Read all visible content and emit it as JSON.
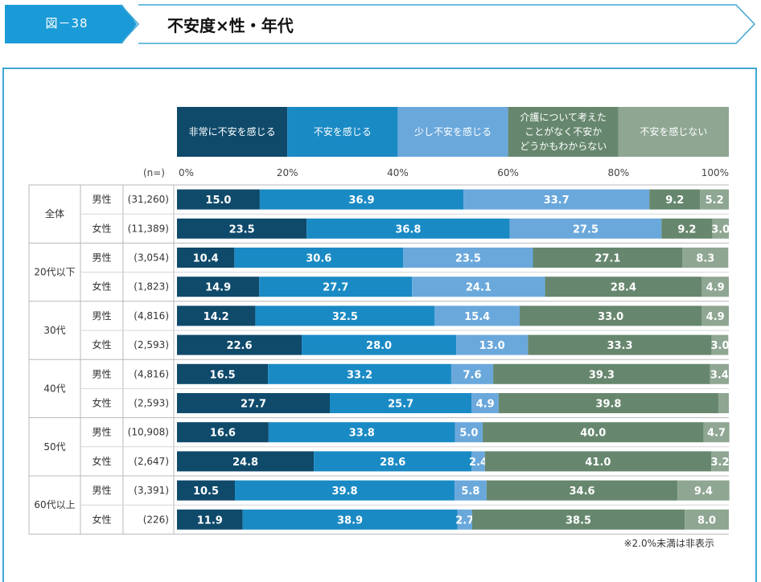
{
  "header": {
    "figure_label": "図－38",
    "title": "不安度×性・年代",
    "colors": {
      "label_bg": "#1a9bd7",
      "frame": "#3fa7d3"
    }
  },
  "footnote": "※2.0%未満は非表示",
  "chart_data": {
    "type": "bar",
    "orientation": "horizontal",
    "stacked": "percent",
    "n_header": "(n=)",
    "x_ticks": [
      "0%",
      "20%",
      "40%",
      "60%",
      "80%",
      "100%"
    ],
    "xlim": [
      0,
      100
    ],
    "label_threshold": 2.0,
    "series": [
      {
        "name": "非常に不安を感じる",
        "color": "#0f4a6b",
        "legend_lines": [
          "非常に不安を感じる"
        ]
      },
      {
        "name": "不安を感じる",
        "color": "#1a8ac4",
        "legend_lines": [
          "不安を感じる"
        ]
      },
      {
        "name": "少し不安を感じる",
        "color": "#6aa8dc",
        "legend_lines": [
          "少し不安を感じる"
        ]
      },
      {
        "name": "介護について考えたことがなく不安かどうかもわからない",
        "color": "#66876e",
        "legend_lines": [
          "介護について考えた",
          "ことがなく不安か",
          "どうかもわからない"
        ]
      },
      {
        "name": "不安を感じない",
        "color": "#8ea692",
        "legend_lines": [
          "不安を感じない"
        ]
      }
    ],
    "groups": [
      {
        "label": "全体",
        "rows": [
          {
            "sex": "男性",
            "n": "(31,260)",
            "values": [
              15.0,
              36.9,
              33.7,
              9.2,
              5.2
            ]
          },
          {
            "sex": "女性",
            "n": "(11,389)",
            "values": [
              23.5,
              36.8,
              27.5,
              9.2,
              3.0
            ]
          }
        ]
      },
      {
        "label": "20代以下",
        "rows": [
          {
            "sex": "男性",
            "n": "(3,054)",
            "values": [
              10.4,
              30.6,
              23.5,
              27.1,
              8.3
            ]
          },
          {
            "sex": "女性",
            "n": "(1,823)",
            "values": [
              14.9,
              27.7,
              24.1,
              28.4,
              4.9
            ]
          }
        ]
      },
      {
        "label": "30代",
        "rows": [
          {
            "sex": "男性",
            "n": "(4,816)",
            "values": [
              14.2,
              32.5,
              15.4,
              33.0,
              4.9
            ]
          },
          {
            "sex": "女性",
            "n": "(2,593)",
            "values": [
              22.6,
              28.0,
              13.0,
              33.3,
              3.0
            ]
          }
        ]
      },
      {
        "label": "40代",
        "rows": [
          {
            "sex": "男性",
            "n": "(4,816)",
            "values": [
              16.5,
              33.2,
              7.6,
              39.3,
              3.4
            ]
          },
          {
            "sex": "女性",
            "n": "(2,593)",
            "values": [
              27.7,
              25.7,
              4.9,
              39.8,
              1.9
            ]
          }
        ]
      },
      {
        "label": "50代",
        "rows": [
          {
            "sex": "男性",
            "n": "(10,908)",
            "values": [
              16.6,
              33.8,
              5.0,
              40.0,
              4.7
            ]
          },
          {
            "sex": "女性",
            "n": "(2,647)",
            "values": [
              24.8,
              28.6,
              2.4,
              41.0,
              3.2
            ]
          }
        ]
      },
      {
        "label": "60代以上",
        "rows": [
          {
            "sex": "男性",
            "n": "(3,391)",
            "values": [
              10.5,
              39.8,
              5.8,
              34.6,
              9.4
            ]
          },
          {
            "sex": "女性",
            "n": "(226)",
            "values": [
              11.9,
              38.9,
              2.7,
              38.5,
              8.0
            ]
          }
        ]
      }
    ]
  }
}
